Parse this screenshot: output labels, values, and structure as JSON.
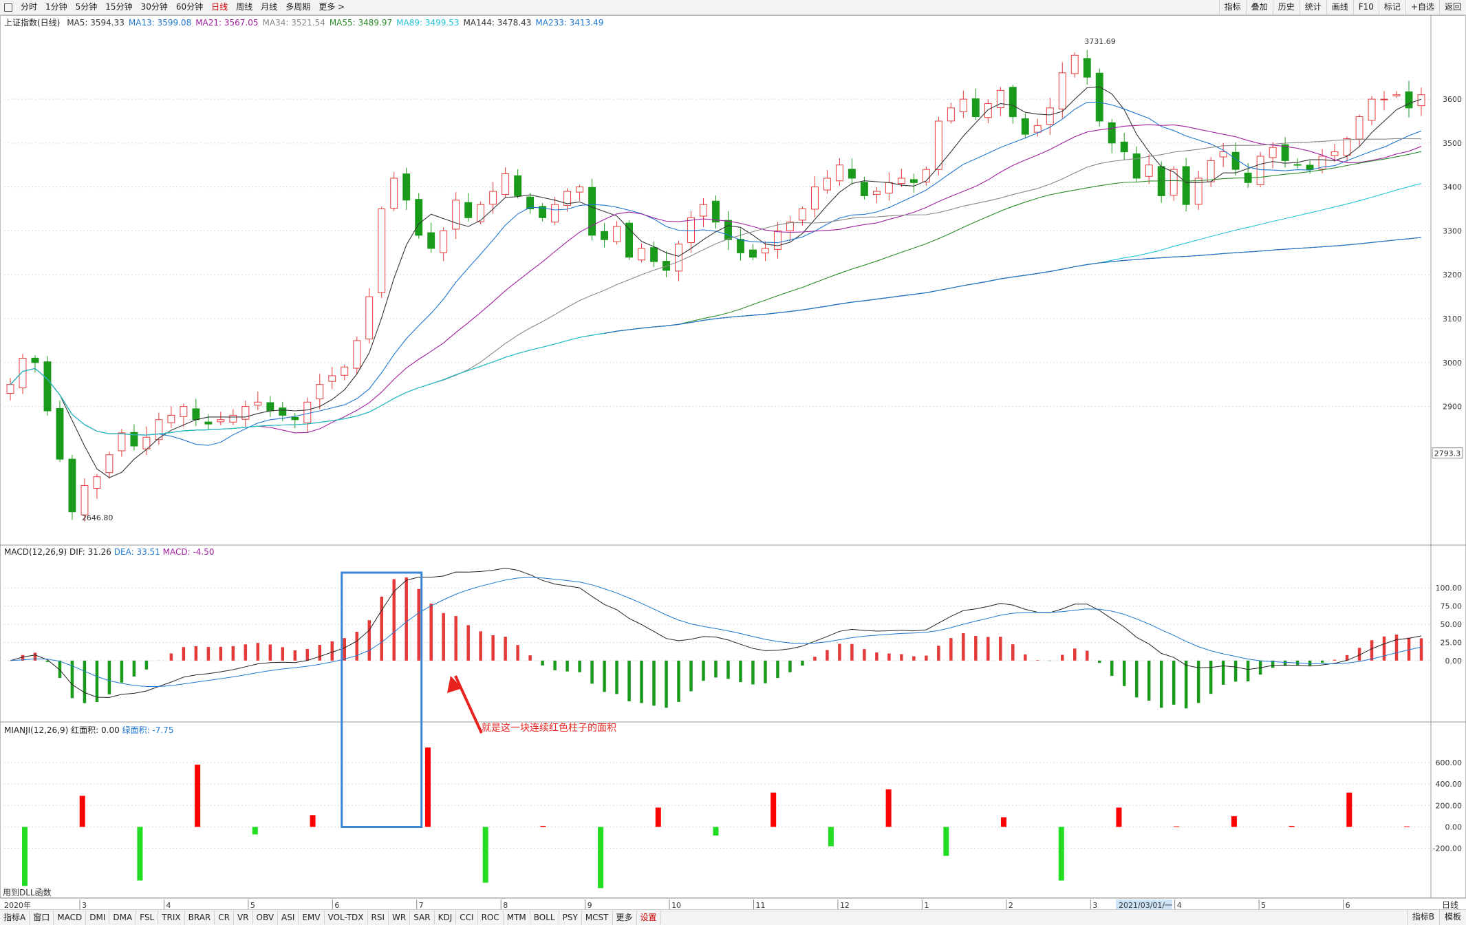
{
  "toolbar": {
    "periods": [
      "分时",
      "1分钟",
      "5分钟",
      "15分钟",
      "30分钟",
      "60分钟",
      "日线",
      "周线",
      "月线",
      "多周期",
      "更多 >"
    ],
    "active_period": "日线",
    "right_buttons": [
      "指标",
      "叠加",
      "历史",
      "统计",
      "画线",
      "F10",
      "标记",
      "+自选",
      "返回"
    ]
  },
  "main_info": {
    "title": "上证指数(日线)",
    "ma": [
      {
        "label": "MA5: 3594.33",
        "color": "#333333"
      },
      {
        "label": "MA13: 3599.08",
        "color": "#1f77d0"
      },
      {
        "label": "MA21: 3567.05",
        "color": "#a020a0"
      },
      {
        "label": "MA34: 3521.54",
        "color": "#888888"
      },
      {
        "label": "MA55: 3489.97",
        "color": "#2a8a2a"
      },
      {
        "label": "MA89: 3499.53",
        "color": "#22c4d8"
      },
      {
        "label": "MA144: 3478.43",
        "color": "#333333"
      },
      {
        "label": "MA233: 3413.49",
        "color": "#1f77d0"
      }
    ]
  },
  "macd_info": {
    "label": "MACD(12,26,9)",
    "dif": "DIF: 31.26",
    "dea": "DEA: 33.51",
    "macd": "MACD: -4.50"
  },
  "mianji_info": {
    "label": "MIANJI(12,26,9)",
    "red": "红面积: 0.00",
    "green": "绿面积: -7.75"
  },
  "annotation": {
    "text": "就是这一块连续红色柱子的面积",
    "color": "#e8231f"
  },
  "footer_note": "用到DLL函数",
  "current_price_tag": "2793.3",
  "date_axis": {
    "year": "2020年",
    "months": [
      "3",
      "4",
      "5",
      "6",
      "7",
      "8",
      "9",
      "10",
      "11",
      "12",
      "1",
      "2",
      "3",
      "4",
      "5",
      "6"
    ],
    "cursor_date": "2021/03/01/一"
  },
  "bottom_tabs": [
    "指标A",
    "窗口",
    "MACD",
    "DMI",
    "DMA",
    "FSL",
    "TRIX",
    "BRAR",
    "CR",
    "VR",
    "OBV",
    "ASI",
    "EMV",
    "VOL-TDX",
    "RSI",
    "WR",
    "SAR",
    "KDJ",
    "CCI",
    "ROC",
    "MTM",
    "BOLL",
    "PSY",
    "MCST",
    "更多",
    "设置"
  ],
  "bottom_right": [
    "指标B",
    "模板"
  ],
  "side_top": "日线",
  "side_buttons": [
    "+",
    "−"
  ],
  "chart_data": [
    {
      "type": "candlestick",
      "title": "上证指数(日线)",
      "y_ticks": [
        2900,
        3000,
        3100,
        3200,
        3300,
        3400,
        3500,
        3600
      ],
      "ylim": [
        2600,
        3760
      ],
      "annotations": [
        {
          "text": "3731.69",
          "value": 3731.69
        },
        {
          "text": "2646.80",
          "value": 2646.8
        }
      ],
      "closes_approx": [
        2950,
        3010,
        3000,
        2890,
        2780,
        2660,
        2720,
        2740,
        2790,
        2840,
        2810,
        2830,
        2870,
        2880,
        2900,
        2870,
        2860,
        2870,
        2880,
        2900,
        2910,
        2890,
        2880,
        2870,
        2910,
        2950,
        2970,
        2990,
        3050,
        3150,
        3350,
        3420,
        3370,
        3290,
        3260,
        3300,
        3370,
        3330,
        3360,
        3390,
        3430,
        3380,
        3350,
        3330,
        3360,
        3390,
        3400,
        3290,
        3280,
        3310,
        3240,
        3260,
        3230,
        3210,
        3270,
        3330,
        3360,
        3320,
        3280,
        3250,
        3240,
        3260,
        3300,
        3320,
        3350,
        3400,
        3420,
        3450,
        3420,
        3380,
        3390,
        3410,
        3420,
        3410,
        3440,
        3550,
        3580,
        3600,
        3560,
        3590,
        3620,
        3560,
        3520,
        3540,
        3580,
        3660,
        3700,
        3650,
        3550,
        3500,
        3480,
        3420,
        3450,
        3380,
        3440,
        3360,
        3420,
        3460,
        3480,
        3440,
        3410,
        3470,
        3490,
        3460,
        3450,
        3440,
        3470,
        3480,
        3510,
        3560,
        3600,
        3600,
        3610,
        3580,
        3610
      ]
    },
    {
      "type": "bar+line",
      "title": "MACD(12,26,9)",
      "series": [
        {
          "name": "DIF",
          "last": 31.26
        },
        {
          "name": "DEA",
          "last": 33.51
        },
        {
          "name": "MACD",
          "last": -4.5
        }
      ],
      "y_ticks": [
        0,
        25,
        50,
        75,
        100
      ],
      "ylim": [
        -75,
        140
      ]
    },
    {
      "type": "bar",
      "title": "MIANJI(12,26,9)",
      "series": [
        {
          "name": "红面积",
          "last": 0.0
        },
        {
          "name": "绿面积",
          "last": -7.75
        }
      ],
      "y_ticks": [
        -200,
        0,
        200,
        400,
        600
      ],
      "ylim": [
        -600,
        850
      ],
      "values_approx": [
        -550,
        290,
        -500,
        580,
        -70,
        110,
        -5,
        740,
        -520,
        10,
        -570,
        180,
        -80,
        320,
        -180,
        350,
        -270,
        90,
        -500,
        180,
        5,
        100,
        10,
        320,
        5
      ]
    }
  ]
}
